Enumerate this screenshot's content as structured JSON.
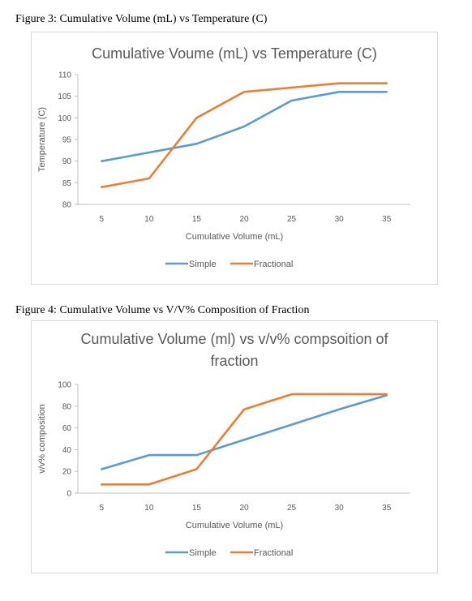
{
  "captions": {
    "figure3": "Figure 3: Cumulative Volume (mL) vs Temperature (C)",
    "figure4": "Figure 4: Cumulative Volume vs V/V% Composition of Fraction"
  },
  "chart_data": [
    {
      "type": "line",
      "title": "Cumulative Voume (mL) vs Temperature (C)",
      "xlabel": "Cumulative Volume (mL)",
      "ylabel": "Temperature (C)",
      "x": [
        5,
        10,
        15,
        20,
        25,
        30,
        35
      ],
      "ylim": [
        80,
        110
      ],
      "yticks": [
        80,
        85,
        90,
        95,
        100,
        105,
        110
      ],
      "grid": false,
      "legend_position": "bottom",
      "series": [
        {
          "name": "Simple",
          "color": "#5b9bd5",
          "values": [
            90,
            92,
            94,
            98,
            104,
            106,
            106
          ]
        },
        {
          "name": "Fractional",
          "color": "#ed7d31",
          "values": [
            84,
            86,
            100,
            106,
            107,
            108,
            108
          ]
        }
      ]
    },
    {
      "type": "line",
      "title": [
        "Cumulative Volume (ml) vs v/v% compsoition of",
        "fraction"
      ],
      "xlabel": "Cumulative Volume (mL)",
      "ylabel": "v/v% composition",
      "x": [
        5,
        10,
        15,
        20,
        25,
        30,
        35
      ],
      "ylim": [
        0,
        100
      ],
      "yticks": [
        0,
        20,
        40,
        60,
        80,
        100
      ],
      "grid": false,
      "legend_position": "bottom",
      "series": [
        {
          "name": "Simple",
          "color": "#5b9bd5",
          "values": [
            22,
            35,
            35,
            49,
            63,
            77,
            90
          ]
        },
        {
          "name": "Fractional",
          "color": "#ed7d31",
          "values": [
            8,
            8,
            22,
            77,
            91,
            91,
            91
          ]
        }
      ]
    }
  ]
}
